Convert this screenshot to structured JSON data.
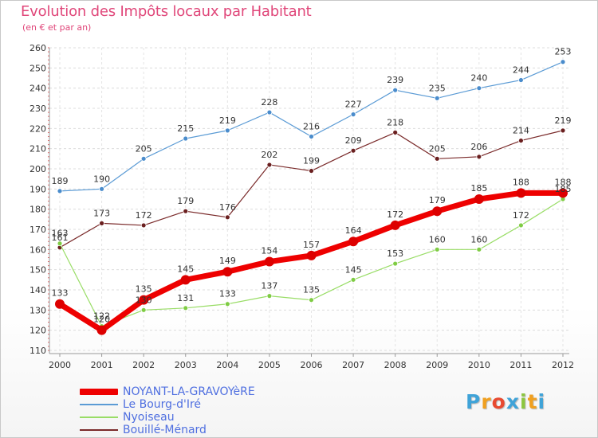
{
  "header": {
    "title": "Evolution des Impôts locaux par Habitant",
    "subtitle": "(en € et par an)"
  },
  "logo": {
    "text": "Proxiti",
    "letters": [
      "P",
      "r",
      "o",
      "x",
      "i",
      "t",
      "i"
    ],
    "colors": [
      "#3fa3d8",
      "#f0a020",
      "#e84a30",
      "#3fa3d8",
      "#8cc63f",
      "#f0a020",
      "#3fa3d8"
    ]
  },
  "chart_data": {
    "type": "line",
    "title": "Evolution des Impôts locaux par Habitant",
    "subtitle": "(en € et par an)",
    "xlabel": "",
    "ylabel": "",
    "x": [
      "2000",
      "2001",
      "2002",
      "2003",
      "2004",
      "2005",
      "2006",
      "2007",
      "2008",
      "2009",
      "2010",
      "2011",
      "2012"
    ],
    "ylim": [
      110,
      260
    ],
    "yticks": [
      110,
      120,
      130,
      140,
      150,
      160,
      170,
      180,
      190,
      200,
      210,
      220,
      230,
      240,
      250,
      260
    ],
    "grid": true,
    "legend_position": "bottom-left",
    "series": [
      {
        "name": "Le Bourg-d'Iré",
        "color": "#5b9bd5",
        "values": [
          189,
          190,
          205,
          215,
          219,
          228,
          216,
          227,
          239,
          235,
          240,
          244,
          253
        ]
      },
      {
        "name": "Bouillé-Ménard",
        "color": "#7a2a2a",
        "values": [
          161,
          173,
          172,
          179,
          176,
          202,
          199,
          209,
          218,
          205,
          206,
          214,
          219
        ]
      },
      {
        "name": "Nyoiseau",
        "color": "#99dd66",
        "values": [
          163,
          122,
          130,
          131,
          133,
          137,
          135,
          145,
          153,
          160,
          160,
          172,
          185
        ]
      },
      {
        "name": "NOYANT-LA-GRAVOYèRE",
        "color": "#ee0000",
        "values": [
          133,
          120,
          135,
          145,
          149,
          154,
          157,
          164,
          172,
          179,
          185,
          188,
          188
        ]
      }
    ],
    "legend": [
      "NOYANT-LA-GRAVOYèRE",
      "Le Bourg-d'Iré",
      "Nyoiseau",
      "Bouillé-Ménard"
    ]
  }
}
